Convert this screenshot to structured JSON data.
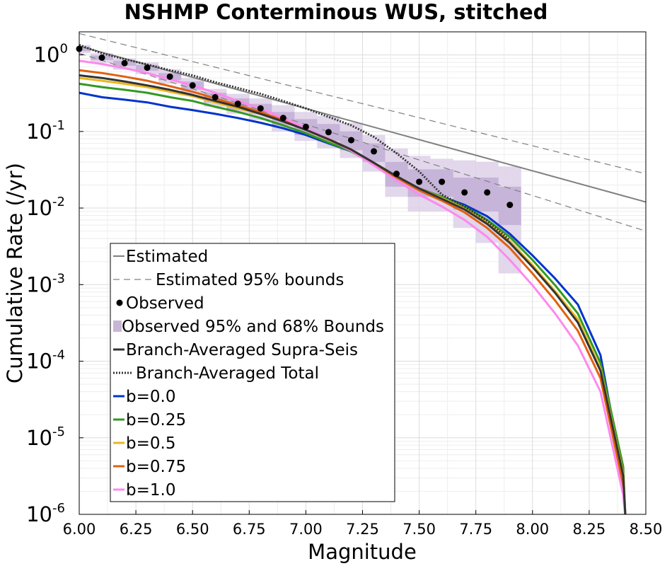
{
  "chart_data": {
    "type": "line",
    "title": "NSHMP Conterminous WUS, stitched",
    "xlabel": "Magnitude",
    "ylabel": "Cumulative Rate (/yr)",
    "xlim": [
      6.0,
      8.5
    ],
    "ylim": [
      1e-06,
      2.0
    ],
    "yscale": "log",
    "grid": true,
    "legend_position": "bottom-left",
    "x_ticks": [
      "6.00",
      "6.25",
      "6.50",
      "6.75",
      "7.00",
      "7.25",
      "7.50",
      "7.75",
      "8.00",
      "8.25",
      "8.50"
    ],
    "y_ticks": [
      {
        "base": "10",
        "exp": "0",
        "value": 1
      },
      {
        "base": "10",
        "exp": "-1",
        "value": 0.1
      },
      {
        "base": "10",
        "exp": "-2",
        "value": 0.01
      },
      {
        "base": "10",
        "exp": "-3",
        "value": 0.001
      },
      {
        "base": "10",
        "exp": "-4",
        "value": 0.0001
      },
      {
        "base": "10",
        "exp": "-5",
        "value": 1e-05
      },
      {
        "base": "10",
        "exp": "-6",
        "value": 1e-06
      }
    ],
    "legend": [
      {
        "label": "Estimated",
        "kind": "line",
        "color": "#808080",
        "dash": "solid",
        "width": 2
      },
      {
        "label": "Estimated 95% bounds",
        "kind": "line",
        "color": "#808080",
        "dash": "dashed",
        "width": 1.2
      },
      {
        "label": "Observed",
        "kind": "marker",
        "color": "#000000"
      },
      {
        "label": "Observed 95% and 68% Bounds",
        "kind": "patch",
        "color": "#c8b6d6"
      },
      {
        "label": "Branch-Averaged Supra-Seis",
        "kind": "line",
        "color": "#333333",
        "dash": "solid",
        "width": 3
      },
      {
        "label": "Branch-Averaged Total",
        "kind": "line",
        "color": "#333333",
        "dash": "dotted",
        "width": 3
      },
      {
        "label": "b=0.0",
        "kind": "line",
        "color": "#0033cc",
        "dash": "solid",
        "width": 3
      },
      {
        "label": "b=0.25",
        "kind": "line",
        "color": "#339922",
        "dash": "solid",
        "width": 3
      },
      {
        "label": "b=0.5",
        "kind": "line",
        "color": "#e8b820",
        "dash": "solid",
        "width": 3
      },
      {
        "label": "b=0.75",
        "kind": "line",
        "color": "#e06010",
        "dash": "solid",
        "width": 3
      },
      {
        "label": "b=1.0",
        "kind": "line",
        "color": "#ff88ee",
        "dash": "solid",
        "width": 3
      }
    ],
    "estimated": {
      "x": [
        6.0,
        8.5
      ],
      "y": [
        1.3,
        0.012
      ]
    },
    "estimated_bounds": [
      {
        "x": [
          6.0,
          8.5
        ],
        "y": [
          1.9,
          0.028
        ]
      },
      {
        "x": [
          6.0,
          8.5
        ],
        "y": [
          1.05,
          0.005
        ]
      }
    ],
    "observed": {
      "x": [
        6.0,
        6.1,
        6.2,
        6.3,
        6.4,
        6.5,
        6.6,
        6.7,
        6.8,
        6.9,
        7.0,
        7.1,
        7.2,
        7.3,
        7.4,
        7.5,
        7.6,
        7.7,
        7.8,
        7.9
      ],
      "y": [
        1.2,
        0.92,
        0.78,
        0.68,
        0.52,
        0.4,
        0.28,
        0.23,
        0.2,
        0.15,
        0.115,
        0.098,
        0.077,
        0.055,
        0.028,
        0.022,
        0.022,
        0.016,
        0.016,
        0.011
      ]
    },
    "observed_bounds_95": {
      "x": [
        6.0,
        6.1,
        6.2,
        6.3,
        6.4,
        6.5,
        6.6,
        6.7,
        6.8,
        6.9,
        7.0,
        7.1,
        7.2,
        7.3,
        7.4,
        7.5,
        7.6,
        7.7,
        7.8,
        7.9
      ],
      "upper": [
        1.35,
        1.05,
        0.9,
        0.8,
        0.65,
        0.5,
        0.36,
        0.31,
        0.27,
        0.22,
        0.18,
        0.16,
        0.13,
        0.09,
        0.06,
        0.048,
        0.044,
        0.042,
        0.04,
        0.035
      ],
      "lower": [
        1.05,
        0.78,
        0.64,
        0.56,
        0.42,
        0.31,
        0.21,
        0.17,
        0.14,
        0.1,
        0.075,
        0.06,
        0.045,
        0.03,
        0.014,
        0.009,
        0.009,
        0.0055,
        0.0035,
        0.0014
      ]
    },
    "observed_bounds_68": {
      "x": [
        6.0,
        6.1,
        6.2,
        6.3,
        6.4,
        6.5,
        6.6,
        6.7,
        6.8,
        6.9,
        7.0,
        7.1,
        7.2,
        7.3,
        7.4,
        7.5,
        7.6,
        7.7,
        7.8,
        7.9
      ],
      "upper": [
        1.27,
        0.98,
        0.84,
        0.74,
        0.58,
        0.45,
        0.32,
        0.27,
        0.23,
        0.18,
        0.145,
        0.125,
        0.1,
        0.07,
        0.04,
        0.032,
        0.032,
        0.025,
        0.025,
        0.019
      ],
      "lower": [
        1.12,
        0.86,
        0.72,
        0.62,
        0.47,
        0.35,
        0.24,
        0.19,
        0.17,
        0.12,
        0.09,
        0.075,
        0.057,
        0.04,
        0.019,
        0.014,
        0.014,
        0.0095,
        0.009,
        0.006
      ]
    },
    "x": [
      6.0,
      6.1,
      6.2,
      6.3,
      6.4,
      6.5,
      6.6,
      6.7,
      6.8,
      6.9,
      7.0,
      7.1,
      7.2,
      7.3,
      7.4,
      7.5,
      7.6,
      7.7,
      7.8,
      7.9,
      8.0,
      8.1,
      8.2,
      8.3,
      8.4,
      8.41
    ],
    "series": [
      {
        "name": "b=0.0",
        "color": "#0033cc",
        "y": [
          0.32,
          0.28,
          0.26,
          0.24,
          0.21,
          0.19,
          0.17,
          0.15,
          0.13,
          0.11,
          0.09,
          0.07,
          0.055,
          0.038,
          0.026,
          0.018,
          0.014,
          0.011,
          0.0078,
          0.0046,
          0.0024,
          0.0012,
          0.00055,
          0.00012,
          3e-06,
          9e-07
        ]
      },
      {
        "name": "b=0.25",
        "color": "#339922",
        "y": [
          0.42,
          0.38,
          0.35,
          0.32,
          0.28,
          0.25,
          0.21,
          0.18,
          0.15,
          0.12,
          0.095,
          0.072,
          0.055,
          0.037,
          0.025,
          0.018,
          0.014,
          0.0105,
          0.007,
          0.0042,
          0.0021,
          0.00098,
          0.00042,
          9.5e-05,
          4.2e-06,
          9e-07
        ]
      },
      {
        "name": "b=0.5",
        "color": "#e8b820",
        "y": [
          0.5,
          0.46,
          0.42,
          0.38,
          0.33,
          0.29,
          0.24,
          0.2,
          0.17,
          0.135,
          0.105,
          0.078,
          0.058,
          0.039,
          0.026,
          0.018,
          0.0135,
          0.0098,
          0.0065,
          0.0037,
          0.0018,
          0.00082,
          0.00035,
          8e-05,
          3.4e-06,
          9e-07
        ]
      },
      {
        "name": "b=0.75",
        "color": "#e06010",
        "y": [
          0.63,
          0.58,
          0.52,
          0.46,
          0.39,
          0.33,
          0.27,
          0.22,
          0.18,
          0.14,
          0.108,
          0.08,
          0.058,
          0.039,
          0.025,
          0.017,
          0.0125,
          0.0088,
          0.0055,
          0.003,
          0.0014,
          0.00062,
          0.00025,
          6e-05,
          2.4e-06,
          9e-07
        ]
      },
      {
        "name": "b=1.0",
        "color": "#ff88ee",
        "y": [
          0.84,
          0.76,
          0.67,
          0.58,
          0.48,
          0.4,
          0.32,
          0.25,
          0.2,
          0.15,
          0.11,
          0.08,
          0.056,
          0.036,
          0.023,
          0.015,
          0.0105,
          0.007,
          0.0042,
          0.0021,
          0.00098,
          0.00042,
          0.00016,
          4e-05,
          1.8e-06,
          9e-07
        ]
      },
      {
        "name": "Branch-Averaged Supra-Seis",
        "color": "#333333",
        "y": [
          0.54,
          0.5,
          0.45,
          0.4,
          0.35,
          0.3,
          0.25,
          0.21,
          0.17,
          0.135,
          0.105,
          0.079,
          0.058,
          0.039,
          0.026,
          0.018,
          0.0132,
          0.0096,
          0.0062,
          0.0035,
          0.0017,
          0.00078,
          0.00032,
          7.5e-05,
          3.2e-06,
          9e-07
        ]
      },
      {
        "name": "Branch-Averaged Total",
        "color": "#333333",
        "dash": "dotted",
        "y": [
          1.35,
          1.05,
          0.88,
          0.75,
          0.63,
          0.54,
          0.44,
          0.37,
          0.31,
          0.25,
          0.2,
          0.155,
          0.12,
          0.085,
          0.052,
          0.03,
          0.015,
          0.0105,
          0.0068,
          0.0038,
          null,
          null,
          null,
          null,
          null,
          null
        ]
      }
    ]
  }
}
